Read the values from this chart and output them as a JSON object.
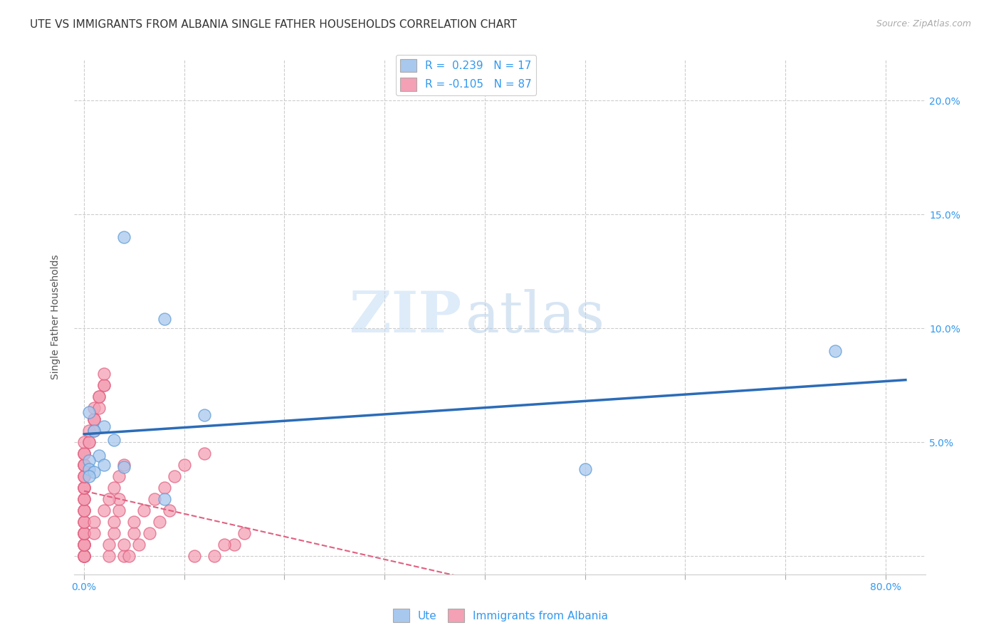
{
  "title": "UTE VS IMMIGRANTS FROM ALBANIA SINGLE FATHER HOUSEHOLDS CORRELATION CHART",
  "source": "Source: ZipAtlas.com",
  "ylabel": "Single Father Households",
  "xlim": [
    -0.01,
    0.84
  ],
  "ylim": [
    -0.008,
    0.218
  ],
  "xticks": [
    0.0,
    0.1,
    0.2,
    0.3,
    0.4,
    0.5,
    0.6,
    0.7,
    0.8
  ],
  "xticklabels": [
    "0.0%",
    "",
    "",
    "",
    "",
    "",
    "",
    "",
    "80.0%"
  ],
  "yticks": [
    0.0,
    0.05,
    0.1,
    0.15,
    0.2
  ],
  "yticklabels": [
    "",
    "5.0%",
    "10.0%",
    "15.0%",
    "20.0%"
  ],
  "grid_color": "#cccccc",
  "background_color": "#ffffff",
  "watermark_zip": "ZIP",
  "watermark_atlas": "atlas",
  "blue_color": "#A8C8EE",
  "blue_edge_color": "#5B9BD5",
  "pink_color": "#F4A0B5",
  "pink_edge_color": "#E06080",
  "blue_line_color": "#2B6CB8",
  "pink_line_color": "#E06080",
  "ute_R": 0.239,
  "ute_N": 17,
  "albania_R": -0.105,
  "albania_N": 87,
  "ute_x": [
    0.04,
    0.08,
    0.005,
    0.02,
    0.01,
    0.03,
    0.015,
    0.005,
    0.02,
    0.04,
    0.005,
    0.01,
    0.005,
    0.75,
    0.5,
    0.08,
    0.12
  ],
  "ute_y": [
    0.14,
    0.104,
    0.063,
    0.057,
    0.055,
    0.051,
    0.044,
    0.042,
    0.04,
    0.039,
    0.038,
    0.037,
    0.035,
    0.09,
    0.038,
    0.025,
    0.062
  ],
  "albania_x": [
    0.0,
    0.0,
    0.0,
    0.0,
    0.0,
    0.0,
    0.0,
    0.0,
    0.0,
    0.0,
    0.0,
    0.0,
    0.0,
    0.0,
    0.0,
    0.0,
    0.0,
    0.0,
    0.0,
    0.0,
    0.0,
    0.0,
    0.0,
    0.0,
    0.0,
    0.0,
    0.0,
    0.0,
    0.0,
    0.0,
    0.0,
    0.0,
    0.0,
    0.0,
    0.0,
    0.0,
    0.0,
    0.0,
    0.0,
    0.0,
    0.005,
    0.005,
    0.005,
    0.01,
    0.01,
    0.01,
    0.01,
    0.01,
    0.015,
    0.015,
    0.015,
    0.02,
    0.02,
    0.02,
    0.025,
    0.025,
    0.03,
    0.03,
    0.035,
    0.035,
    0.04,
    0.04,
    0.05,
    0.05,
    0.06,
    0.07,
    0.08,
    0.09,
    0.1,
    0.12,
    0.13,
    0.15,
    0.01,
    0.01,
    0.02,
    0.025,
    0.03,
    0.035,
    0.04,
    0.045,
    0.055,
    0.065,
    0.075,
    0.085,
    0.11,
    0.14,
    0.16
  ],
  "albania_y": [
    0.0,
    0.0,
    0.0,
    0.0,
    0.0,
    0.0,
    0.005,
    0.005,
    0.005,
    0.005,
    0.005,
    0.01,
    0.01,
    0.01,
    0.01,
    0.01,
    0.015,
    0.015,
    0.015,
    0.02,
    0.02,
    0.02,
    0.025,
    0.025,
    0.025,
    0.03,
    0.03,
    0.03,
    0.03,
    0.035,
    0.035,
    0.035,
    0.04,
    0.04,
    0.04,
    0.04,
    0.045,
    0.045,
    0.045,
    0.05,
    0.05,
    0.05,
    0.055,
    0.055,
    0.06,
    0.06,
    0.06,
    0.065,
    0.065,
    0.07,
    0.07,
    0.075,
    0.075,
    0.08,
    0.0,
    0.005,
    0.01,
    0.015,
    0.02,
    0.025,
    0.0,
    0.005,
    0.01,
    0.015,
    0.02,
    0.025,
    0.03,
    0.035,
    0.04,
    0.045,
    0.0,
    0.005,
    0.01,
    0.015,
    0.02,
    0.025,
    0.03,
    0.035,
    0.04,
    0.0,
    0.005,
    0.01,
    0.015,
    0.02,
    0.0,
    0.005,
    0.01
  ],
  "legend_blue_label": "Ute",
  "legend_pink_label": "Immigrants from Albania",
  "title_fontsize": 11,
  "axis_label_fontsize": 10,
  "tick_fontsize": 10,
  "source_fontsize": 9
}
